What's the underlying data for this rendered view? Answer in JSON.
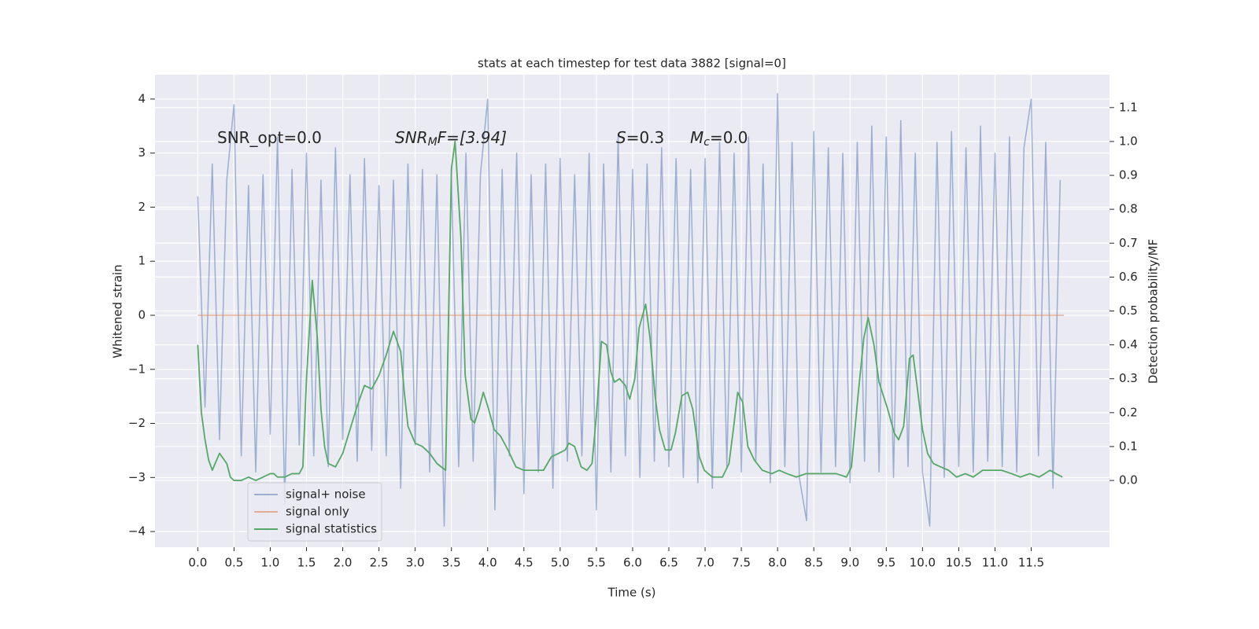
{
  "chart_data": {
    "type": "line",
    "title": "stats at each timestep for test data 3882 [signal=0]",
    "xlabel": "Time (s)",
    "ylabel": "Whitened strain",
    "y2label": "Detection probability/MF",
    "annotations": [
      {
        "parts": [
          "SNR_opt=0.0"
        ]
      },
      {
        "parts": [
          "SNR",
          "M",
          "F=[3.94]"
        ]
      },
      {
        "parts": [
          "S",
          "=0.3"
        ]
      },
      {
        "parts": [
          "M",
          "c",
          "=0.0"
        ]
      }
    ],
    "xlim": [
      -0.59,
      12.58
    ],
    "xticks": [
      {
        "value": 0,
        "label": "0.0"
      },
      0.5,
      {
        "value": 1,
        "label": "1.0"
      },
      1.5,
      {
        "value": 2,
        "label": "2.0"
      },
      2.5,
      {
        "value": 3,
        "label": "3.0"
      },
      3.5,
      {
        "value": 4,
        "label": "4.0"
      },
      4.5,
      {
        "value": 5,
        "label": "5.0"
      },
      5.5,
      {
        "value": 6,
        "label": "6.0"
      },
      6.5,
      {
        "value": 7,
        "label": "7.0"
      },
      7.5,
      {
        "value": 8,
        "label": "8.0"
      },
      8.5,
      {
        "value": 9,
        "label": "9.0"
      },
      9.5,
      {
        "value": 10,
        "label": "10.0"
      },
      10.5,
      {
        "value": 11,
        "label": "11.0"
      },
      11.5
    ],
    "ylim": [
      -4.29,
      4.45
    ],
    "yticks": [
      {
        "value": -4,
        "label": "−4"
      },
      {
        "value": -3,
        "label": "−3"
      },
      {
        "value": -2,
        "label": "−2"
      },
      {
        "value": -1,
        "label": "−1"
      },
      0,
      1,
      2,
      3,
      4
    ],
    "y2lim": [
      -0.197,
      1.197
    ],
    "y2ticks": [
      {
        "value": 0,
        "label": "0.0"
      },
      0.1,
      0.2,
      0.3,
      0.4,
      0.5,
      0.6,
      0.7,
      0.8,
      0.9,
      {
        "value": 1,
        "label": "1.0"
      },
      1.1
    ],
    "grid": true,
    "legend": "lower left",
    "series": [
      {
        "name": "signal+ noise",
        "color": "#4c72b0",
        "x": [
          0.0,
          0.1,
          0.2,
          0.3,
          0.4,
          0.5,
          0.6,
          0.7,
          0.8,
          0.9,
          1.0,
          1.1,
          1.2,
          1.3,
          1.4,
          1.5,
          1.6,
          1.7,
          1.8,
          1.9,
          2.0,
          2.1,
          2.2,
          2.3,
          2.4,
          2.5,
          2.6,
          2.7,
          2.8,
          2.9,
          3.0,
          3.1,
          3.2,
          3.3,
          3.4,
          3.5,
          3.6,
          3.7,
          3.8,
          3.9,
          4.0,
          4.1,
          4.2,
          4.3,
          4.4,
          4.5,
          4.6,
          4.7,
          4.8,
          4.9,
          5.0,
          5.1,
          5.2,
          5.3,
          5.4,
          5.5,
          5.6,
          5.7,
          5.8,
          5.9,
          6.0,
          6.1,
          6.2,
          6.3,
          6.4,
          6.5,
          6.6,
          6.7,
          6.8,
          6.9,
          7.0,
          7.1,
          7.2,
          7.3,
          7.4,
          7.5,
          7.6,
          7.7,
          7.8,
          7.9,
          8.0,
          8.1,
          8.2,
          8.3,
          8.4,
          8.5,
          8.6,
          8.7,
          8.8,
          8.9,
          9.0,
          9.1,
          9.2,
          9.3,
          9.4,
          9.5,
          9.6,
          9.7,
          9.8,
          9.9,
          10.0,
          10.1,
          10.2,
          10.3,
          10.4,
          10.5,
          10.6,
          10.7,
          10.8,
          10.9,
          11.0,
          11.1,
          11.2,
          11.3,
          11.4,
          11.5,
          11.6,
          11.7,
          11.8,
          11.9
        ],
        "values": [
          2.2,
          -1.7,
          2.8,
          -2.3,
          2.5,
          3.9,
          -2.6,
          2.4,
          -2.9,
          2.6,
          -2.2,
          3.3,
          -3.5,
          2.7,
          -2.4,
          3.0,
          -2.6,
          2.5,
          -2.8,
          3.1,
          -2.3,
          2.6,
          -2.7,
          2.9,
          -2.5,
          2.4,
          -2.6,
          2.5,
          -3.2,
          2.8,
          -2.4,
          2.7,
          -2.9,
          2.6,
          -3.9,
          2.5,
          -2.8,
          3.0,
          -2.7,
          2.6,
          4.0,
          -3.6,
          2.7,
          -2.6,
          3.0,
          -3.3,
          2.6,
          -2.9,
          2.8,
          -3.2,
          2.9,
          -2.7,
          2.6,
          -2.6,
          3.0,
          -3.6,
          2.8,
          -2.9,
          3.3,
          -2.6,
          2.7,
          -3.0,
          2.8,
          -2.7,
          3.1,
          -2.8,
          2.9,
          -3.0,
          2.7,
          -3.1,
          2.9,
          -3.2,
          3.2,
          -2.8,
          3.0,
          -2.9,
          3.3,
          -2.7,
          2.8,
          -3.1,
          4.1,
          -2.8,
          3.2,
          -3.0,
          -3.8,
          3.4,
          -2.9,
          3.1,
          -2.8,
          3.0,
          -3.1,
          3.2,
          -2.7,
          3.5,
          -2.9,
          3.3,
          -3.0,
          3.6,
          -2.8,
          3.0,
          -2.9,
          -3.9,
          3.2,
          -3.0,
          3.4,
          -2.8,
          3.1,
          -2.9,
          3.5,
          -2.7,
          3.0,
          -2.8,
          3.3,
          -2.9,
          3.1,
          4.0,
          -2.6,
          3.2,
          -3.2,
          2.5
        ]
      },
      {
        "name": "signal only",
        "color": "#dd8452",
        "x": [
          0.0,
          11.95
        ],
        "values": [
          0,
          0
        ]
      },
      {
        "name": "signal statistics",
        "color": "#55a868",
        "axis": "y2",
        "x": [
          0.0,
          0.05,
          0.1,
          0.15,
          0.2,
          0.3,
          0.4,
          0.45,
          0.5,
          0.6,
          0.7,
          0.8,
          0.9,
          1.0,
          1.05,
          1.1,
          1.2,
          1.3,
          1.4,
          1.45,
          1.5,
          1.58,
          1.65,
          1.7,
          1.75,
          1.8,
          1.9,
          2.0,
          2.1,
          2.2,
          2.3,
          2.4,
          2.5,
          2.6,
          2.7,
          2.8,
          2.85,
          2.9,
          3.0,
          3.1,
          3.2,
          3.3,
          3.42,
          3.5,
          3.55,
          3.63,
          3.69,
          3.77,
          3.82,
          3.88,
          3.94,
          4.0,
          4.09,
          4.18,
          4.28,
          4.39,
          4.5,
          4.66,
          4.77,
          4.88,
          4.98,
          5.07,
          5.12,
          5.2,
          5.29,
          5.37,
          5.44,
          5.5,
          5.57,
          5.64,
          5.7,
          5.75,
          5.82,
          5.9,
          5.96,
          6.03,
          6.09,
          6.18,
          6.24,
          6.31,
          6.37,
          6.45,
          6.53,
          6.59,
          6.68,
          6.76,
          6.83,
          6.92,
          6.99,
          7.1,
          7.24,
          7.33,
          7.39,
          7.45,
          7.52,
          7.59,
          7.68,
          7.79,
          7.92,
          8.02,
          8.13,
          8.26,
          8.39,
          8.52,
          8.68,
          8.81,
          8.95,
          9.02,
          9.11,
          9.19,
          9.25,
          9.33,
          9.4,
          9.52,
          9.61,
          9.67,
          9.74,
          9.82,
          9.87,
          9.93,
          10.0,
          10.07,
          10.15,
          10.25,
          10.36,
          10.47,
          10.59,
          10.7,
          10.83,
          10.96,
          11.09,
          11.23,
          11.35,
          11.48,
          11.61,
          11.76,
          11.84,
          11.93
        ],
        "values": [
          0.4,
          0.2,
          0.12,
          0.06,
          0.03,
          0.08,
          0.05,
          0.01,
          0,
          0,
          0.01,
          0,
          0.01,
          0.02,
          0.02,
          0.01,
          0.01,
          0.02,
          0.02,
          0.04,
          0.3,
          0.59,
          0.42,
          0.21,
          0.1,
          0.05,
          0.04,
          0.08,
          0.15,
          0.22,
          0.28,
          0.27,
          0.31,
          0.37,
          0.44,
          0.38,
          0.26,
          0.16,
          0.11,
          0.1,
          0.08,
          0.05,
          0.03,
          0.92,
          1.0,
          0.72,
          0.31,
          0.18,
          0.17,
          0.21,
          0.26,
          0.22,
          0.15,
          0.13,
          0.09,
          0.04,
          0.03,
          0.03,
          0.03,
          0.07,
          0.08,
          0.09,
          0.11,
          0.1,
          0.04,
          0.03,
          0.05,
          0.19,
          0.41,
          0.4,
          0.32,
          0.29,
          0.3,
          0.28,
          0.24,
          0.3,
          0.45,
          0.52,
          0.42,
          0.25,
          0.15,
          0.09,
          0.09,
          0.14,
          0.25,
          0.26,
          0.21,
          0.07,
          0.03,
          0.01,
          0.01,
          0.05,
          0.15,
          0.26,
          0.23,
          0.1,
          0.06,
          0.03,
          0.02,
          0.03,
          0.02,
          0.01,
          0.02,
          0.02,
          0.02,
          0.02,
          0.01,
          0.04,
          0.25,
          0.42,
          0.48,
          0.4,
          0.29,
          0.21,
          0.14,
          0.12,
          0.16,
          0.36,
          0.37,
          0.27,
          0.15,
          0.08,
          0.05,
          0.04,
          0.03,
          0.01,
          0.02,
          0.01,
          0.03,
          0.03,
          0.03,
          0.02,
          0.01,
          0.02,
          0.01,
          0.03,
          0.02,
          0.01
        ]
      }
    ]
  }
}
